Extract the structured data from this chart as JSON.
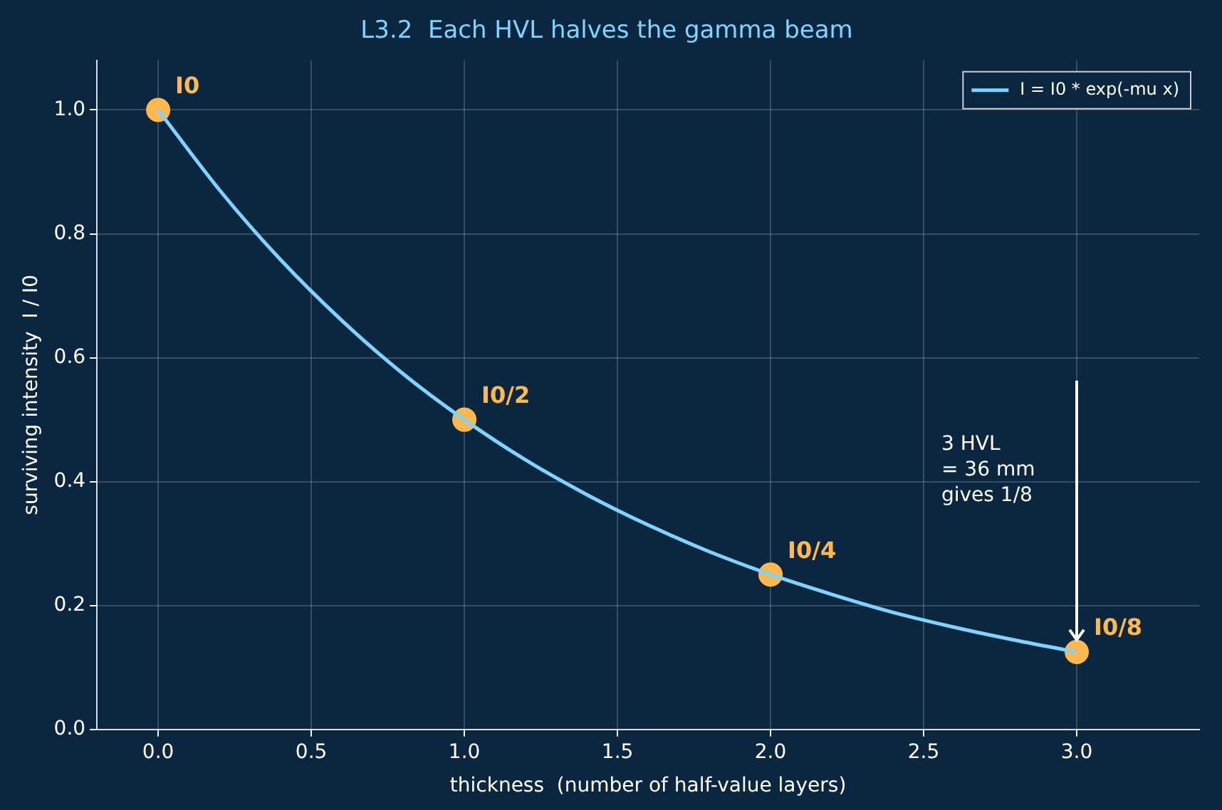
{
  "chart_data": {
    "type": "line",
    "title": "L3.2  Each HVL halves the gamma beam",
    "xlabel": "thickness  (number of half-value layers)",
    "ylabel": "surviving intensity  I / I0",
    "series": [
      {
        "name": "I = I0 * exp(-mu x)",
        "color": "#7fd4ff",
        "x": [
          0,
          0.2,
          0.4,
          0.6,
          0.8,
          1,
          1.2,
          1.4,
          1.6,
          1.8,
          2,
          2.2,
          2.4,
          2.6,
          2.8,
          3
        ],
        "values": [
          1,
          0.871,
          0.758,
          0.66,
          0.574,
          0.5,
          0.435,
          0.379,
          0.33,
          0.287,
          0.25,
          0.218,
          0.189,
          0.165,
          0.144,
          0.125
        ]
      },
      {
        "type": "scatter",
        "marker": "circle",
        "color": "#ffb84d",
        "x": [
          0,
          1,
          2,
          3
        ],
        "values": [
          1,
          0.5,
          0.25,
          0.125
        ],
        "value_labels": [
          "I0",
          "I0/2",
          "I0/4",
          "I0/8"
        ]
      }
    ],
    "xlim": [
      -0.2,
      3.4
    ],
    "ylim": [
      0,
      1.08
    ],
    "xticks": [
      {
        "value": 0,
        "label": "0.0"
      },
      {
        "value": 0.5,
        "label": "0.5"
      },
      {
        "value": 1,
        "label": "1.0"
      },
      {
        "value": 1.5,
        "label": "1.5"
      },
      {
        "value": 2,
        "label": "2.0"
      },
      {
        "value": 2.5,
        "label": "2.5"
      },
      {
        "value": 3,
        "label": "3.0"
      }
    ],
    "yticks": [
      {
        "value": 0,
        "label": "0.0"
      },
      {
        "value": 0.2,
        "label": "0.2"
      },
      {
        "value": 0.4,
        "label": "0.4"
      },
      {
        "value": 0.6,
        "label": "0.6"
      },
      {
        "value": 0.8,
        "label": "0.8"
      },
      {
        "value": 1,
        "label": "1.0"
      }
    ],
    "annotations": [
      "3 HVL\n= 36 mm\ngives 1/8"
    ],
    "grid": true,
    "legend": "top right",
    "line_style": "solid"
  }
}
